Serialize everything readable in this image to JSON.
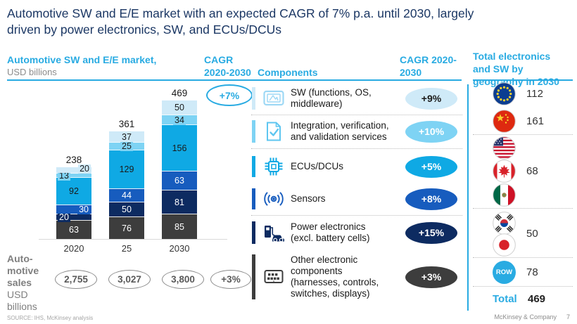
{
  "slide": {
    "title": "Automotive SW and E/E market with an expected CAGR of 7% p.a. until 2030, largely\ndriven by power electronics, SW, and ECUs/DCUs"
  },
  "colors": {
    "accent": "#29abe2",
    "title_text": "#1b3764"
  },
  "chart_section": {
    "header_bold": "Automotive SW and E/E market,",
    "header_sub": "USD billions",
    "cagr_header": "CAGR\n2020-2030",
    "overall_cagr": "+7%"
  },
  "chart_data": {
    "type": "bar",
    "stacked": true,
    "title": "Automotive SW and E/E market, USD billions",
    "categories": [
      "2020",
      "25",
      "2030"
    ],
    "totals": [
      238,
      361,
      469
    ],
    "series": [
      {
        "name": "Other electronic components",
        "color": "#3d3d3d",
        "values": [
          63,
          76,
          85
        ]
      },
      {
        "name": "Power electronics",
        "color": "#0d2b61",
        "values": [
          20,
          50,
          81
        ]
      },
      {
        "name": "Sensors",
        "color": "#175cbe",
        "values": [
          30,
          44,
          63
        ]
      },
      {
        "name": "ECUs/DCUs",
        "color": "#0fa9e4",
        "values": [
          92,
          129,
          156
        ]
      },
      {
        "name": "Integration, verification, and validation services",
        "color": "#7ed3f4",
        "values": [
          13,
          25,
          34
        ]
      },
      {
        "name": "SW (functions, OS, middleware)",
        "color": "#cfeaf8",
        "values": [
          20,
          37,
          50
        ]
      }
    ],
    "ylim": [
      0,
      469
    ],
    "grid": false,
    "legend_position": "right-component-list"
  },
  "components_section": {
    "header": "Components",
    "cagr_header": "CAGR 2020-\n2030",
    "items": [
      {
        "label": "SW (functions, OS,\nmiddleware)",
        "cagr": "+9%",
        "color": "#cfeaf8",
        "icon_color": "#9ed8f5",
        "icon": "display-navigation-icon",
        "oval_text": "dark"
      },
      {
        "label": "Integration, verification,\nand validation services",
        "cagr": "+10%",
        "color": "#7ed3f4",
        "icon_color": "#5ec6f0",
        "icon": "document-check-icon",
        "oval_text": "white"
      },
      {
        "label": "ECUs/DCUs",
        "cagr": "+5%",
        "color": "#0fa9e4",
        "icon_color": "#0fa9e4",
        "icon": "chip-icon",
        "oval_text": "white"
      },
      {
        "label": "Sensors",
        "cagr": "+8%",
        "color": "#175cbe",
        "icon_color": "#175cbe",
        "icon": "sensor-waves-icon",
        "oval_text": "white"
      },
      {
        "label": "Power electronics\n(excl. battery cells)",
        "cagr": "+15%",
        "color": "#0d2b61",
        "icon_color": "#0d2b61",
        "icon": "ev-charging-icon",
        "oval_text": "white"
      },
      {
        "label": "Other electronic\ncomponents\n(harnesses, controls,\nswitches, displays)",
        "cagr": "+3%",
        "color": "#3d3d3d",
        "icon_color": "#3d3d3d",
        "icon": "control-panel-icon",
        "oval_text": "white"
      }
    ]
  },
  "sales_row": {
    "label": "Auto-\nmotive\nsales",
    "unit": "USD\nbillions",
    "values": [
      "2,755",
      "3,027",
      "3,800"
    ],
    "cagr": "+3%"
  },
  "geography": {
    "header": "Total electronics\nand SW by\ngeography in 2030",
    "groups": [
      {
        "flags": [
          "eu"
        ],
        "value": "112"
      },
      {
        "flags": [
          "china"
        ],
        "value": "161"
      },
      {
        "flags": [
          "usa",
          "canada",
          "mexico"
        ],
        "value": "68"
      },
      {
        "flags": [
          "south-korea",
          "japan"
        ],
        "value": "50"
      },
      {
        "flags": [
          "row"
        ],
        "value": "78"
      }
    ],
    "row_label": "ROW",
    "total_label": "Total",
    "total_value": "469"
  },
  "footer": {
    "source": "SOURCE: IHS, McKinsey analysis",
    "brand": "McKinsey & Company",
    "page": "7"
  }
}
